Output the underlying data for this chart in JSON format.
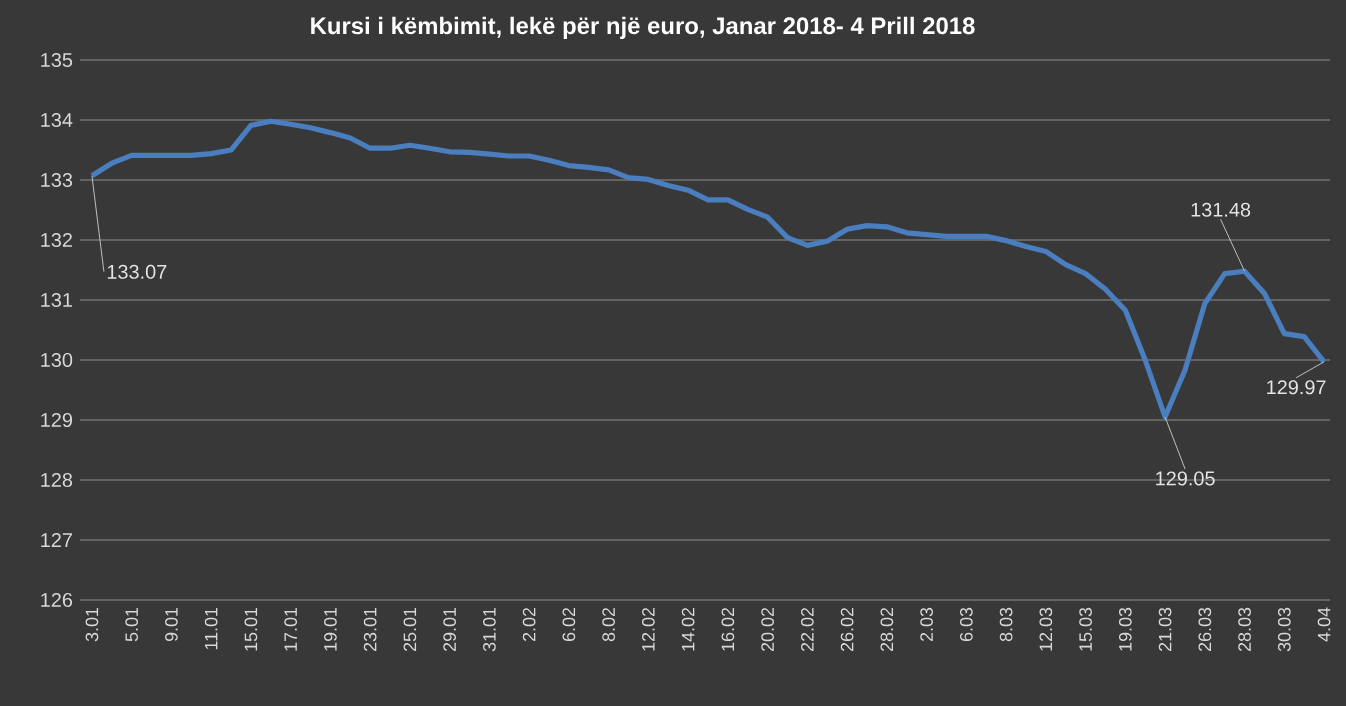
{
  "chart_data": {
    "type": "line",
    "title": "Kursi i këmbimit, lekë për një euro, Janar 2018-  4 Prill 2018",
    "categories": [
      "3.01",
      null,
      "5.01",
      null,
      "9.01",
      null,
      "11.01",
      null,
      "15.01",
      null,
      "17.01",
      null,
      "19.01",
      null,
      "23.01",
      null,
      "25.01",
      null,
      "29.01",
      null,
      "31.01",
      null,
      "2.02",
      null,
      "6.02",
      null,
      "8.02",
      null,
      "12.02",
      null,
      "14.02",
      null,
      "16.02",
      null,
      "20.02",
      null,
      "22.02",
      null,
      "26.02",
      null,
      "28.02",
      null,
      "2.03",
      null,
      "6.03",
      null,
      "8.03",
      null,
      "12.03",
      null,
      "15.03",
      null,
      "19.03",
      null,
      "21.03",
      null,
      "26.03",
      null,
      "28.03",
      null,
      "30.03",
      null,
      "4.04"
    ],
    "series": [
      {
        "color": "#4a7ebf",
        "values": [
          133.07,
          133.28,
          133.41,
          133.41,
          133.41,
          133.41,
          133.44,
          133.5,
          133.91,
          133.98,
          133.93,
          133.87,
          133.79,
          133.7,
          133.53,
          133.53,
          133.58,
          133.53,
          133.47,
          133.46,
          133.43,
          133.4,
          133.4,
          133.33,
          133.24,
          133.21,
          133.17,
          133.04,
          133.01,
          132.91,
          132.83,
          132.67,
          132.67,
          132.51,
          132.38,
          132.04,
          131.91,
          131.98,
          132.18,
          132.24,
          132.22,
          132.12,
          132.09,
          132.06,
          132.06,
          132.06,
          131.99,
          131.89,
          131.81,
          131.59,
          131.44,
          131.18,
          130.83,
          130.0,
          129.05,
          129.83,
          130.94,
          131.44,
          131.48,
          131.11,
          130.44,
          130.39,
          129.97
        ]
      }
    ],
    "ylim": [
      126,
      135
    ],
    "yticks": [
      126,
      127,
      128,
      129,
      130,
      131,
      132,
      133,
      134,
      135
    ],
    "grid": "y",
    "marker": "none",
    "line_style": "solid",
    "annotations": [
      {
        "text": "133.07",
        "x": "3.01",
        "y": 133.07
      },
      {
        "text": "129.05",
        "x": "21.03",
        "y": 129.05
      },
      {
        "text": "131.48",
        "x": "28.03",
        "y": 131.48
      },
      {
        "text": "129.97",
        "x": "4.04",
        "y": 129.97
      }
    ]
  }
}
